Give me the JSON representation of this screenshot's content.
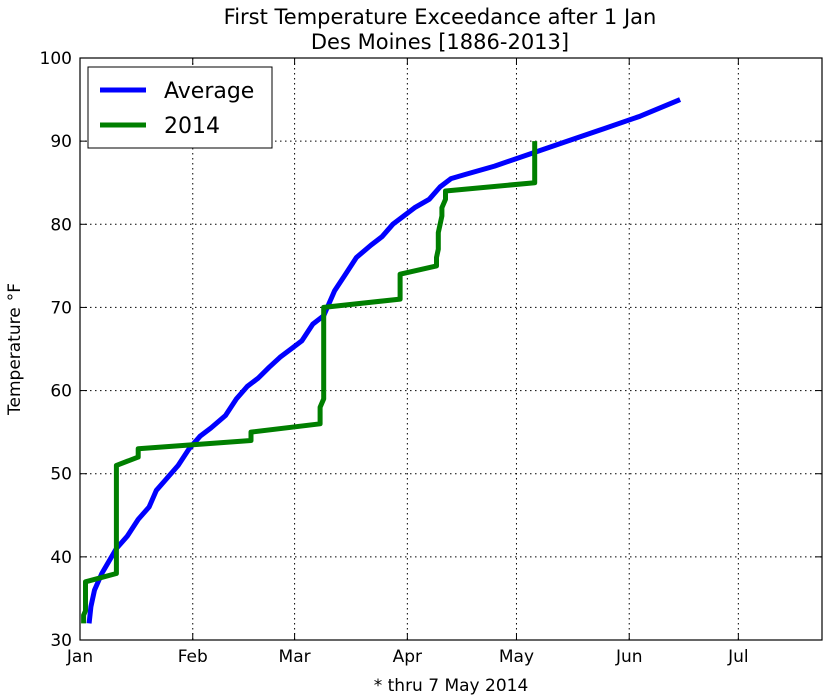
{
  "chart_data": {
    "type": "line",
    "title_lines": [
      "First Temperature Exceedance after 1 Jan",
      "Des Moines [1886-2013]"
    ],
    "xlabel": "",
    "ylabel": "Temperature °F",
    "ylabel_main": "Temperature",
    "ylabel_unit": "°F",
    "note": "* thru 7 May 2014",
    "x_axis": "day of year (0 = 1 Jan)",
    "xlim": [
      0,
      204
    ],
    "ylim": [
      30,
      100
    ],
    "x_ticks": [
      {
        "label": "Jan",
        "value": 0
      },
      {
        "label": "Feb",
        "value": 31
      },
      {
        "label": "Mar",
        "value": 59
      },
      {
        "label": "Apr",
        "value": 90
      },
      {
        "label": "May",
        "value": 120
      },
      {
        "label": "Jun",
        "value": 151
      },
      {
        "label": "Jul",
        "value": 181
      }
    ],
    "y_ticks": [
      30,
      40,
      50,
      60,
      70,
      80,
      90,
      100
    ],
    "grid": true,
    "legend_position": "top-left",
    "series": [
      {
        "name": "Average",
        "color": "#0000ff",
        "points": [
          [
            2.5,
            32
          ],
          [
            3,
            34
          ],
          [
            4,
            36
          ],
          [
            6,
            38
          ],
          [
            8,
            39.5
          ],
          [
            10,
            41
          ],
          [
            13,
            42.5
          ],
          [
            16,
            44.5
          ],
          [
            19,
            46
          ],
          [
            21,
            48
          ],
          [
            24,
            49.5
          ],
          [
            27,
            51
          ],
          [
            30,
            53
          ],
          [
            33,
            54.5
          ],
          [
            36,
            55.5
          ],
          [
            40,
            57
          ],
          [
            43,
            59
          ],
          [
            46,
            60.5
          ],
          [
            49,
            61.5
          ],
          [
            52,
            62.8
          ],
          [
            55,
            64
          ],
          [
            58,
            65
          ],
          [
            61,
            66
          ],
          [
            64,
            68
          ],
          [
            67,
            69
          ],
          [
            70,
            72
          ],
          [
            73,
            74
          ],
          [
            76,
            76
          ],
          [
            80,
            77.5
          ],
          [
            83,
            78.5
          ],
          [
            86,
            80
          ],
          [
            89,
            81
          ],
          [
            92,
            82
          ],
          [
            96,
            83
          ],
          [
            99,
            84.5
          ],
          [
            102,
            85.5
          ],
          [
            106,
            86
          ],
          [
            114,
            87
          ],
          [
            124,
            88.5
          ],
          [
            134,
            90
          ],
          [
            144,
            91.5
          ],
          [
            154,
            93
          ],
          [
            165,
            95
          ]
        ]
      },
      {
        "name": "2014",
        "color": "#007f00",
        "points": [
          [
            1,
            32
          ],
          [
            1,
            33
          ],
          [
            1.5,
            33.5
          ],
          [
            1.5,
            35
          ],
          [
            1.5,
            37
          ],
          [
            10,
            38
          ],
          [
            10,
            51
          ],
          [
            16,
            52
          ],
          [
            16,
            53
          ],
          [
            47,
            54
          ],
          [
            47,
            55
          ],
          [
            66,
            56
          ],
          [
            66,
            58
          ],
          [
            67,
            59
          ],
          [
            67,
            70
          ],
          [
            88,
            71
          ],
          [
            88,
            74
          ],
          [
            98,
            75
          ],
          [
            98,
            76
          ],
          [
            98.5,
            77
          ],
          [
            98.5,
            79
          ],
          [
            99,
            80
          ],
          [
            99.5,
            81
          ],
          [
            99.5,
            82
          ],
          [
            100.5,
            83
          ],
          [
            100.5,
            84
          ],
          [
            125,
            85
          ],
          [
            125,
            90
          ]
        ]
      }
    ]
  }
}
